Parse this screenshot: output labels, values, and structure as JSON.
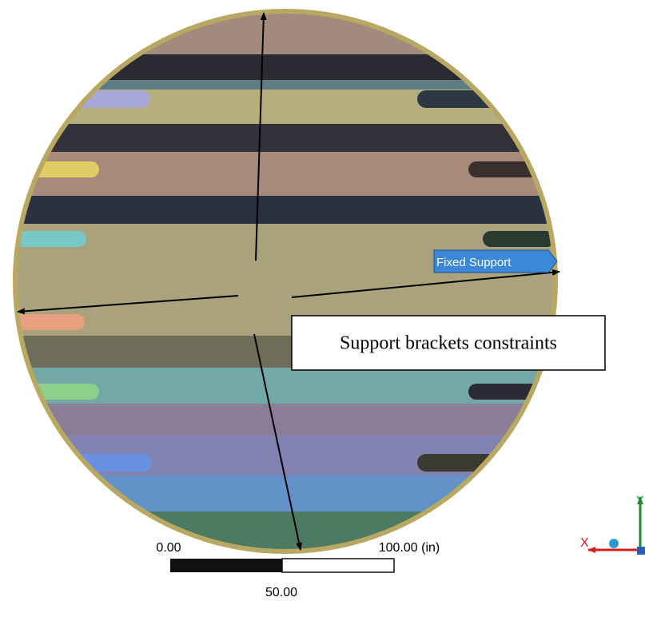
{
  "annotations": {
    "fixed_support": "Fixed Support",
    "callout": "Support brackets constraints"
  },
  "scale_bar": {
    "start": "0.00",
    "mid": "50.00",
    "end": "100.00 (in)"
  },
  "triad": {
    "x": "X",
    "y": "Y"
  }
}
